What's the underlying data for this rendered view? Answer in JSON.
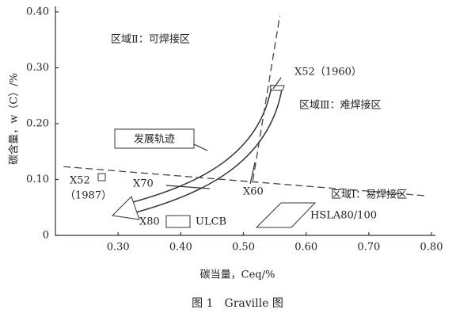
{
  "chart_data": {
    "type": "line",
    "title": "图 1　Graville 图",
    "xlabel": "碳当量，Ceq/%",
    "ylabel": "碳含量，w（C）/%",
    "xlim": [
      0.2,
      0.8
    ],
    "ylim": [
      0,
      0.4
    ],
    "xticks": [
      {
        "value": 0.3,
        "label": "0.30"
      },
      {
        "value": 0.4,
        "label": "0.40"
      },
      {
        "value": 0.5,
        "label": "0.50"
      },
      {
        "value": 0.6,
        "label": "0.60"
      },
      {
        "value": 0.7,
        "label": "0.70"
      },
      {
        "value": 0.8,
        "label": "0.80"
      }
    ],
    "yticks": [
      0,
      {
        "value": 0.1,
        "label": "0.10"
      },
      {
        "value": 0.2,
        "label": "0.20"
      },
      {
        "value": 0.3,
        "label": "0.30"
      },
      {
        "value": 0.4,
        "label": "0.40"
      }
    ],
    "series": [
      {
        "color": "#444",
        "x": [
          0.213,
          0.79
        ],
        "values": [
          0.123,
          0.071
        ]
      },
      {
        "color": "#444",
        "x": [
          0.515,
          0.558
        ],
        "values": [
          0.098,
          0.393
        ]
      }
    ],
    "annotations": [
      "区域Ⅱ：可焊接区",
      "区域Ⅲ：难焊接区",
      "区域Ⅰ：易焊接区",
      "X52（1960）",
      "发展轨迹",
      "X70",
      "X60",
      "X52",
      "（1987）",
      "X80",
      "ULCB",
      "HSLA80/100"
    ]
  }
}
